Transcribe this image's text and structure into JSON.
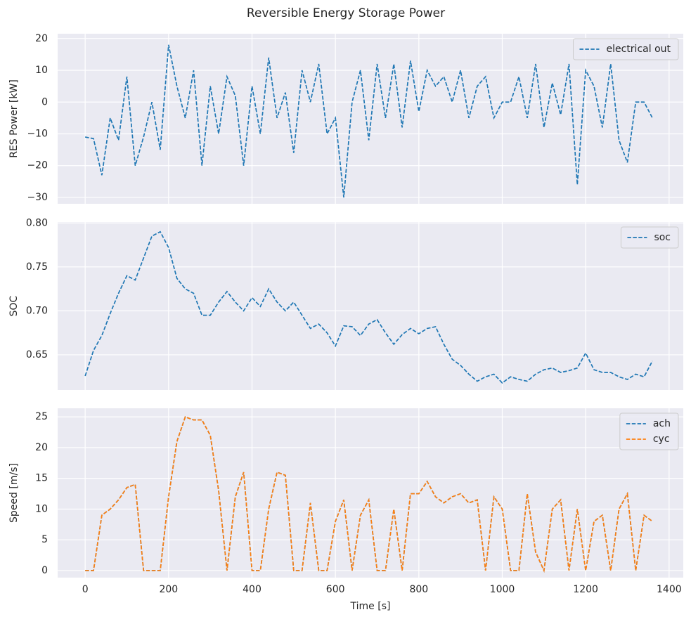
{
  "title": "Reversible Energy Storage Power",
  "chart_data": [
    {
      "type": "line",
      "ylabel": "RES Power [kW]",
      "x": [
        0,
        20,
        40,
        60,
        80,
        100,
        120,
        140,
        160,
        180,
        200,
        220,
        240,
        260,
        280,
        300,
        320,
        340,
        360,
        380,
        400,
        420,
        440,
        460,
        480,
        500,
        520,
        540,
        560,
        580,
        600,
        620,
        640,
        660,
        680,
        700,
        720,
        740,
        760,
        780,
        800,
        820,
        840,
        860,
        880,
        900,
        920,
        940,
        960,
        980,
        1000,
        1020,
        1040,
        1060,
        1080,
        1100,
        1120,
        1140,
        1160,
        1180,
        1200,
        1220,
        1240,
        1260,
        1280,
        1300,
        1320,
        1340,
        1360
      ],
      "series": [
        {
          "name": "electrical out",
          "color": "#1f77b4",
          "values": [
            -11,
            -11.5,
            -23,
            -5,
            -12,
            8,
            -20,
            -11,
            0,
            -15,
            18,
            5,
            -5,
            10,
            -20,
            5,
            -10,
            8,
            2,
            -20,
            5,
            -10,
            14,
            -5,
            3,
            -16,
            10,
            0,
            12,
            -10,
            -5,
            -30,
            0,
            10,
            -12,
            12,
            -5,
            12,
            -8,
            13,
            -3,
            10,
            5,
            8,
            0,
            10,
            -5,
            5,
            8,
            -5,
            0,
            0,
            8,
            -5,
            12,
            -8,
            6,
            -4,
            12,
            -26,
            10,
            5,
            -8,
            12,
            -12,
            -19,
            0,
            0,
            -5
          ]
        }
      ],
      "xlim": [
        -66,
        1434
      ],
      "xticks": [
        0,
        200,
        400,
        600,
        800,
        1000,
        1200,
        1400
      ],
      "ylim": [
        -32,
        21.5
      ],
      "yticks": [
        {
          "value": -30,
          "label": "−30"
        },
        {
          "value": -20,
          "label": "−20"
        },
        {
          "value": -10,
          "label": "−10"
        },
        0,
        10,
        20
      ],
      "grid": true,
      "legend": "upper right"
    },
    {
      "type": "line",
      "ylabel": "SOC",
      "x": [
        0,
        20,
        40,
        60,
        80,
        100,
        120,
        140,
        160,
        180,
        200,
        220,
        240,
        260,
        280,
        300,
        320,
        340,
        360,
        380,
        400,
        420,
        440,
        460,
        480,
        500,
        520,
        540,
        560,
        580,
        600,
        620,
        640,
        660,
        680,
        700,
        720,
        740,
        760,
        780,
        800,
        820,
        840,
        860,
        880,
        900,
        920,
        940,
        960,
        980,
        1000,
        1020,
        1040,
        1060,
        1080,
        1100,
        1120,
        1140,
        1160,
        1180,
        1200,
        1220,
        1240,
        1260,
        1280,
        1300,
        1320,
        1340,
        1360
      ],
      "series": [
        {
          "name": "soc",
          "color": "#1f77b4",
          "values": [
            0.626,
            0.655,
            0.672,
            0.697,
            0.72,
            0.74,
            0.735,
            0.76,
            0.785,
            0.79,
            0.772,
            0.737,
            0.725,
            0.72,
            0.695,
            0.695,
            0.71,
            0.722,
            0.71,
            0.7,
            0.715,
            0.705,
            0.725,
            0.71,
            0.7,
            0.71,
            0.695,
            0.68,
            0.685,
            0.675,
            0.66,
            0.683,
            0.682,
            0.672,
            0.685,
            0.69,
            0.675,
            0.662,
            0.673,
            0.68,
            0.674,
            0.68,
            0.682,
            0.662,
            0.645,
            0.638,
            0.628,
            0.62,
            0.625,
            0.628,
            0.618,
            0.625,
            0.622,
            0.62,
            0.628,
            0.633,
            0.635,
            0.63,
            0.632,
            0.635,
            0.652,
            0.633,
            0.63,
            0.63,
            0.625,
            0.622,
            0.628,
            0.625,
            0.643
          ]
        }
      ],
      "xlim": [
        -66,
        1434
      ],
      "xticks": [
        0,
        200,
        400,
        600,
        800,
        1000,
        1200,
        1400
      ],
      "ylim": [
        0.61,
        0.801
      ],
      "yticks": [
        0.65,
        {
          "value": 0.7,
          "label": "0.70"
        },
        0.75,
        {
          "value": 0.8,
          "label": "0.80"
        }
      ],
      "grid": true,
      "legend": "upper right"
    },
    {
      "type": "line",
      "ylabel": "Speed [m/s]",
      "xlabel": "Time [s]",
      "x": [
        0,
        20,
        40,
        60,
        80,
        100,
        120,
        140,
        160,
        180,
        200,
        220,
        240,
        260,
        280,
        300,
        320,
        340,
        360,
        380,
        400,
        420,
        440,
        460,
        480,
        500,
        520,
        540,
        560,
        580,
        600,
        620,
        640,
        660,
        680,
        700,
        720,
        740,
        760,
        780,
        800,
        820,
        840,
        860,
        880,
        900,
        920,
        940,
        960,
        980,
        1000,
        1020,
        1040,
        1060,
        1080,
        1100,
        1120,
        1140,
        1160,
        1180,
        1200,
        1220,
        1240,
        1260,
        1280,
        1300,
        1320,
        1340,
        1360
      ],
      "series": [
        {
          "name": "ach",
          "color": "#1f77b4",
          "values": [
            0,
            0,
            9,
            10,
            11.5,
            13.5,
            14,
            0,
            0,
            0,
            12,
            21,
            25,
            24.5,
            24.5,
            22,
            13,
            0,
            12,
            16,
            0,
            0,
            10,
            16,
            15.5,
            0,
            0,
            11,
            0,
            0,
            8,
            11.5,
            0,
            9,
            11.5,
            0,
            0,
            10,
            0,
            12.5,
            12.5,
            14.5,
            12,
            11,
            12,
            12.5,
            11,
            11.5,
            0,
            12,
            10,
            0,
            0,
            12.5,
            3,
            0,
            10,
            11.5,
            0,
            10,
            0,
            8,
            9,
            0,
            10,
            12.5,
            0,
            9,
            8
          ]
        },
        {
          "name": "cyc",
          "color": "#ff7f0e",
          "values": [
            0,
            0,
            9,
            10,
            11.5,
            13.5,
            14,
            0,
            0,
            0,
            12,
            21,
            25,
            24.5,
            24.5,
            22,
            13,
            0,
            12,
            16,
            0,
            0,
            10,
            16,
            15.5,
            0,
            0,
            11,
            0,
            0,
            8,
            11.5,
            0,
            9,
            11.5,
            0,
            0,
            10,
            0,
            12.5,
            12.5,
            14.5,
            12,
            11,
            12,
            12.5,
            11,
            11.5,
            0,
            12,
            10,
            0,
            0,
            12.5,
            3,
            0,
            10,
            11.5,
            0,
            10,
            0,
            8,
            9,
            0,
            10,
            12.5,
            0,
            9,
            8
          ]
        }
      ],
      "xlim": [
        -66,
        1434
      ],
      "xticks": [
        0,
        200,
        400,
        600,
        800,
        1000,
        1200,
        1400
      ],
      "ylim": [
        -1.15,
        26.4
      ],
      "yticks": [
        0,
        5,
        10,
        15,
        20,
        25
      ],
      "grid": true,
      "legend": "upper right"
    }
  ]
}
